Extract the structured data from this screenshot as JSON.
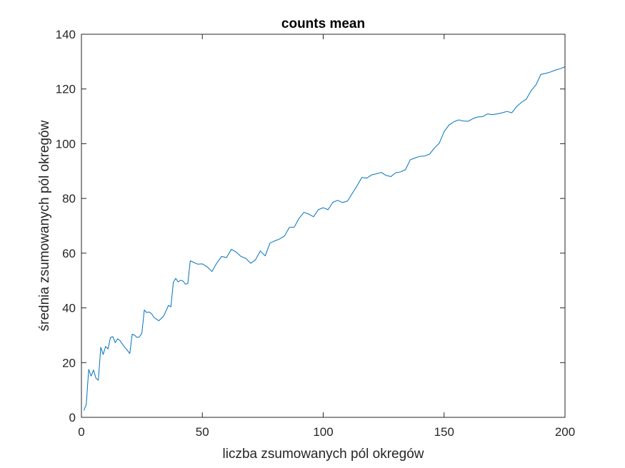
{
  "chart_data": {
    "type": "line",
    "title": "counts mean",
    "xlabel": "liczba zsumowanych pól okregów",
    "ylabel": "średnia zsumowanych pól okregów",
    "xlim": [
      0,
      200
    ],
    "ylim": [
      0,
      140
    ],
    "xticks": [
      0,
      50,
      100,
      150,
      200
    ],
    "yticks": [
      0,
      20,
      40,
      60,
      80,
      100,
      120,
      140
    ],
    "xtick_labels": [
      "0",
      "50",
      "100",
      "150",
      "200"
    ],
    "ytick_labels": [
      "0",
      "20",
      "40",
      "60",
      "80",
      "100",
      "120",
      "140"
    ],
    "grid": false,
    "series": [
      {
        "color": "#0072BD",
        "x": [
          1,
          2,
          3,
          4,
          5,
          6,
          7,
          8,
          9,
          10,
          11,
          12,
          13,
          14,
          15,
          16,
          17,
          18,
          19,
          20,
          21,
          22,
          23,
          24,
          25,
          26,
          27,
          28,
          29,
          30,
          32,
          34,
          36,
          37,
          38,
          39,
          40,
          41,
          42,
          43,
          44,
          45,
          46,
          48,
          50,
          52,
          54,
          56,
          58,
          60,
          62,
          64,
          66,
          68,
          70,
          72,
          74,
          76,
          78,
          80,
          82,
          84,
          86,
          88,
          90,
          92,
          94,
          96,
          98,
          100,
          102,
          104,
          106,
          108,
          110,
          112,
          114,
          116,
          118,
          120,
          122,
          124,
          126,
          128,
          130,
          132,
          134,
          136,
          138,
          140,
          142,
          144,
          146,
          148,
          150,
          152,
          154,
          156,
          158,
          160,
          162,
          164,
          166,
          168,
          170,
          172,
          174,
          176,
          178,
          180,
          182,
          184,
          186,
          188,
          190,
          192,
          194,
          196,
          198,
          200
        ],
        "y": [
          2.5,
          4.7,
          17.5,
          15.1,
          17.3,
          14.3,
          13.6,
          25.6,
          23,
          25.9,
          25,
          29.2,
          29.5,
          27.3,
          28.7,
          28,
          26.7,
          25.5,
          24.5,
          23.3,
          30.4,
          30,
          29.2,
          29.4,
          30.8,
          39.2,
          38.3,
          38.5,
          37.9,
          36.5,
          35.3,
          37,
          40.9,
          40.4,
          49.3,
          50.8,
          49.5,
          50.1,
          49.8,
          48.7,
          48.9,
          57.2,
          56.8,
          56,
          56.1,
          55,
          53.3,
          56.4,
          58.8,
          58.4,
          61.4,
          60.4,
          58.8,
          58.1,
          56.3,
          57.6,
          60.8,
          59,
          63.7,
          64.5,
          65.2,
          66.3,
          69.4,
          69.5,
          72.7,
          74.9,
          74.3,
          73.3,
          75.9,
          76.6,
          75.9,
          78.6,
          79.3,
          78.5,
          79,
          81.8,
          84.6,
          87.7,
          87.4,
          88.6,
          89,
          89.5,
          88.4,
          88,
          89.4,
          89.7,
          90.5,
          94.1,
          94.8,
          95.4,
          95.5,
          96.2,
          98.4,
          100.2,
          104.4,
          106.8,
          108,
          108.7,
          108.3,
          108.2,
          109.2,
          109.8,
          109.9,
          110.9,
          110.6,
          110.9,
          111.3,
          111.8,
          111.3,
          113.6,
          115.1,
          116.3,
          119.4,
          121.5,
          125.3,
          125.7,
          126.2,
          126.9,
          127.4,
          128.1
        ]
      }
    ]
  }
}
